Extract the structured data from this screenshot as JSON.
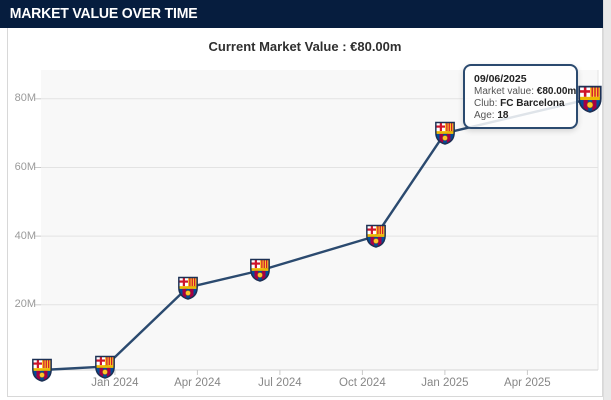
{
  "header": {
    "title": "MARKET VALUE OVER TIME"
  },
  "subtitle": {
    "text": "Current Market Value : €80.00m"
  },
  "tooltip": {
    "date": "09/06/2025",
    "rows": [
      {
        "label": "Market value:",
        "value": "€80.00m"
      },
      {
        "label": "Club:",
        "value": "FC Barcelona"
      },
      {
        "label": "Age:",
        "value": "18"
      }
    ]
  },
  "colors": {
    "header_bg": "#061d3e",
    "line": "#2b4a6f",
    "tooltip_border": "#2b4a6f",
    "plot_bg": "#f8f8f8",
    "grid": "#e3e3e3",
    "axis_line": "#d4d4d4",
    "tick": "#c9c9c9",
    "y_label": "#9a9a9a",
    "x_label": "#878787",
    "gutter": "#e9e9e9",
    "crest_garnet": "#a50044",
    "crest_blue": "#004d98",
    "crest_gold": "#fdc52c",
    "crest_red": "#cf142b"
  },
  "chart_data": {
    "type": "line",
    "title": "Market value over time",
    "current_value": "€80.00m",
    "marker": "fc-barcelona-crest",
    "legend": "none",
    "grid": "horizontal-only",
    "x_axis": {
      "range": [
        2023.776,
        2025.464
      ],
      "ticks": [
        {
          "label": "Jan 2024",
          "t": 2024.0
        },
        {
          "label": "Apr 2024",
          "t": 2024.25
        },
        {
          "label": "Jul 2024",
          "t": 2024.5
        },
        {
          "label": "Oct 2024",
          "t": 2024.75
        },
        {
          "label": "Jan 2025",
          "t": 2025.0
        },
        {
          "label": "Apr 2025",
          "t": 2025.25
        }
      ]
    },
    "y_axis": {
      "range": [
        1,
        88.4
      ],
      "unit": "€ million",
      "ticks": [
        {
          "label": "20M",
          "value": 20
        },
        {
          "label": "40M",
          "value": 40
        },
        {
          "label": "60M",
          "value": 60
        },
        {
          "label": "80M",
          "value": 80
        }
      ]
    },
    "series": [
      {
        "name": "Market value",
        "points": [
          {
            "date": "Oct 2023",
            "t": 2023.78,
            "value_m": 1
          },
          {
            "date": "Dec 2023",
            "t": 2023.97,
            "value_m": 2
          },
          {
            "date": "Mar 2024",
            "t": 2024.22,
            "value_m": 25
          },
          {
            "date": "Jun 2024",
            "t": 2024.44,
            "value_m": 30
          },
          {
            "date": "Oct 2024",
            "t": 2024.79,
            "value_m": 40
          },
          {
            "date": "Jan 2025",
            "t": 2025.0,
            "value_m": 70
          },
          {
            "date": "09/06/2025",
            "t": 2025.44,
            "value_m": 80
          }
        ]
      }
    ],
    "hovered_point_index": 6
  }
}
